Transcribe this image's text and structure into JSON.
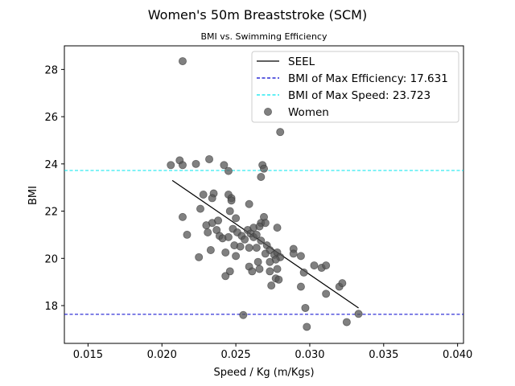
{
  "chart_data": {
    "type": "scatter",
    "title": "Women's 50m Breaststroke (SCM)",
    "subtitle": "BMI vs. Swimming Efficiency",
    "xlabel": "Speed / Kg (m/Kgs)",
    "ylabel": "BMI",
    "xlim": [
      0.0134,
      0.0404
    ],
    "ylim": [
      16.4,
      29.0
    ],
    "xticks": [
      0.015,
      0.02,
      0.025,
      0.03,
      0.035,
      0.04
    ],
    "xtick_labels": [
      "0.015",
      "0.020",
      "0.025",
      "0.030",
      "0.035",
      "0.040"
    ],
    "yticks": [
      18,
      20,
      22,
      24,
      26,
      28
    ],
    "ytick_labels": [
      "18",
      "20",
      "22",
      "24",
      "26",
      "28"
    ],
    "grid": false,
    "legend_position": "top-right",
    "colors": {
      "seel": "#000000",
      "max_efficiency": "#0000cc",
      "max_speed": "#00e5ee",
      "points": "#555555"
    },
    "legend": [
      {
        "label": "SEEL",
        "style": "line",
        "color": "#000000"
      },
      {
        "label": "BMI of Max Efficiency: 17.631",
        "style": "dashed",
        "color": "#0000cc"
      },
      {
        "label": "BMI of Max Speed: 23.723",
        "style": "dashed",
        "color": "#00e5ee"
      },
      {
        "label": "Women",
        "style": "marker",
        "color": "#555555"
      }
    ],
    "seel_line": {
      "x": [
        0.0207,
        0.0333
      ],
      "y": [
        23.3,
        17.9
      ]
    },
    "hlines": [
      {
        "name": "max_efficiency",
        "y": 17.631,
        "color": "#0000cc"
      },
      {
        "name": "max_speed",
        "y": 23.723,
        "color": "#00e5ee"
      }
    ],
    "series": [
      {
        "name": "Women",
        "points": [
          [
            0.0214,
            28.35
          ],
          [
            0.028,
            25.35
          ],
          [
            0.0212,
            24.15
          ],
          [
            0.0206,
            23.95
          ],
          [
            0.0214,
            23.95
          ],
          [
            0.0223,
            24.0
          ],
          [
            0.0232,
            24.2
          ],
          [
            0.0242,
            23.95
          ],
          [
            0.0245,
            23.7
          ],
          [
            0.0268,
            23.95
          ],
          [
            0.0269,
            23.8
          ],
          [
            0.0267,
            23.45
          ],
          [
            0.0228,
            22.7
          ],
          [
            0.0235,
            22.75
          ],
          [
            0.0234,
            22.55
          ],
          [
            0.0245,
            22.7
          ],
          [
            0.0247,
            22.55
          ],
          [
            0.0247,
            22.45
          ],
          [
            0.0259,
            22.3
          ],
          [
            0.0226,
            22.1
          ],
          [
            0.0214,
            21.75
          ],
          [
            0.0246,
            22.0
          ],
          [
            0.025,
            21.7
          ],
          [
            0.0269,
            21.75
          ],
          [
            0.0267,
            21.5
          ],
          [
            0.027,
            21.5
          ],
          [
            0.0234,
            21.5
          ],
          [
            0.0238,
            21.6
          ],
          [
            0.023,
            21.4
          ],
          [
            0.0237,
            21.2
          ],
          [
            0.0248,
            21.25
          ],
          [
            0.0262,
            21.3
          ],
          [
            0.0266,
            21.35
          ],
          [
            0.0278,
            21.3
          ],
          [
            0.0231,
            21.1
          ],
          [
            0.0217,
            21.0
          ],
          [
            0.0239,
            20.95
          ],
          [
            0.0241,
            20.85
          ],
          [
            0.0245,
            20.9
          ],
          [
            0.0251,
            21.1
          ],
          [
            0.0254,
            20.95
          ],
          [
            0.0256,
            20.8
          ],
          [
            0.0258,
            21.2
          ],
          [
            0.026,
            21.05
          ],
          [
            0.0262,
            20.9
          ],
          [
            0.0264,
            21.0
          ],
          [
            0.0267,
            20.75
          ],
          [
            0.0249,
            20.55
          ],
          [
            0.0253,
            20.5
          ],
          [
            0.0259,
            20.45
          ],
          [
            0.0264,
            20.45
          ],
          [
            0.0271,
            20.55
          ],
          [
            0.0273,
            20.35
          ],
          [
            0.0233,
            20.35
          ],
          [
            0.0243,
            20.25
          ],
          [
            0.025,
            20.1
          ],
          [
            0.0225,
            20.05
          ],
          [
            0.027,
            20.2
          ],
          [
            0.0276,
            20.15
          ],
          [
            0.0278,
            20.25
          ],
          [
            0.028,
            20.05
          ],
          [
            0.0289,
            20.4
          ],
          [
            0.0289,
            20.2
          ],
          [
            0.0294,
            20.1
          ],
          [
            0.0277,
            19.95
          ],
          [
            0.0273,
            19.85
          ],
          [
            0.0265,
            19.85
          ],
          [
            0.0266,
            19.55
          ],
          [
            0.0273,
            19.45
          ],
          [
            0.0278,
            19.55
          ],
          [
            0.0259,
            19.65
          ],
          [
            0.0261,
            19.45
          ],
          [
            0.0246,
            19.45
          ],
          [
            0.0243,
            19.25
          ],
          [
            0.0277,
            19.15
          ],
          [
            0.0279,
            19.1
          ],
          [
            0.0296,
            19.4
          ],
          [
            0.0303,
            19.7
          ],
          [
            0.0308,
            19.6
          ],
          [
            0.0311,
            19.7
          ],
          [
            0.0274,
            18.85
          ],
          [
            0.0294,
            18.8
          ],
          [
            0.032,
            18.8
          ],
          [
            0.0322,
            18.95
          ],
          [
            0.0311,
            18.5
          ],
          [
            0.0297,
            17.9
          ],
          [
            0.0255,
            17.6
          ],
          [
            0.0333,
            17.65
          ],
          [
            0.0325,
            17.3
          ],
          [
            0.0298,
            17.1
          ]
        ]
      }
    ]
  }
}
